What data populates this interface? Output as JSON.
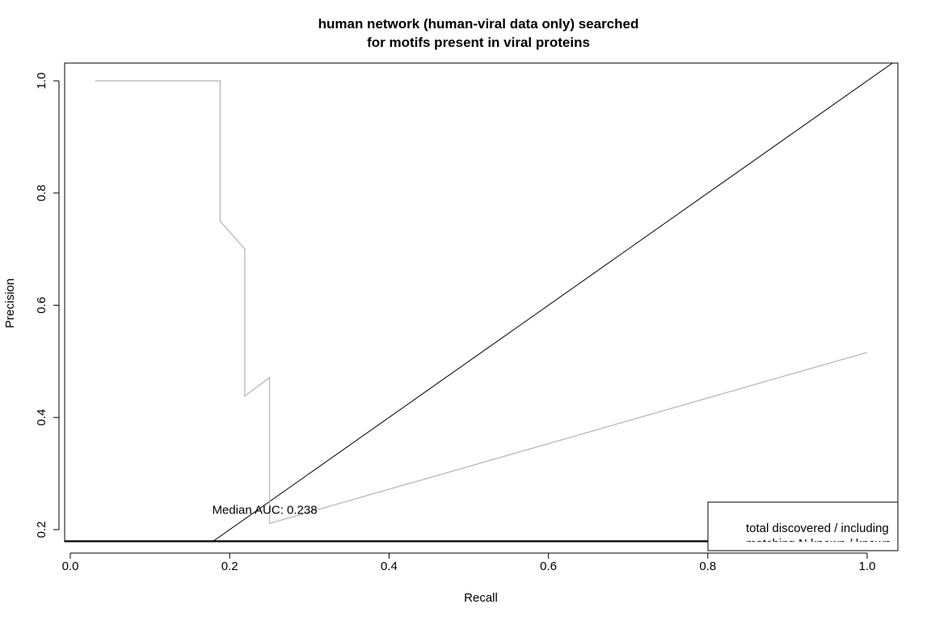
{
  "chart_data": {
    "type": "line",
    "title_lines": [
      "human network (human-viral data only) searched",
      "for motifs present in viral proteins"
    ],
    "xlabel": "Recall",
    "ylabel": "Precision",
    "xlim": [
      0.0,
      1.04
    ],
    "ylim": [
      0.18,
      1.03
    ],
    "x_ticks": [
      0.0,
      0.2,
      0.4,
      0.6,
      0.8,
      1.0
    ],
    "x_tick_labels": [
      "0.0",
      "0.2",
      "0.4",
      "0.6",
      "0.8",
      "1.0"
    ],
    "y_ticks": [
      0.2,
      0.4,
      0.6,
      0.8,
      1.0
    ],
    "y_tick_labels": [
      "0.2",
      "0.4",
      "0.6",
      "0.8",
      "1.0"
    ],
    "grid": false,
    "series": [
      {
        "color": "#b3b3b3",
        "x": [
          0.031,
          0.188,
          0.188,
          0.219,
          0.219,
          0.25,
          0.25,
          1.0
        ],
        "y": [
          1.0,
          1.0,
          0.75,
          0.7,
          0.438,
          0.471,
          0.211,
          0.516
        ]
      }
    ],
    "reference_lines": [
      {
        "color": "#000000",
        "x": [
          0.0,
          1.04
        ],
        "y": [
          0.0,
          1.04
        ]
      }
    ],
    "annotations": [
      {
        "text": "Median AUC: 0.238",
        "x": 0.178,
        "y": 0.235
      }
    ],
    "legend": {
      "placement": "bottom-right",
      "lines": [
        "total discovered / including",
        "matching N known / known"
      ]
    }
  }
}
